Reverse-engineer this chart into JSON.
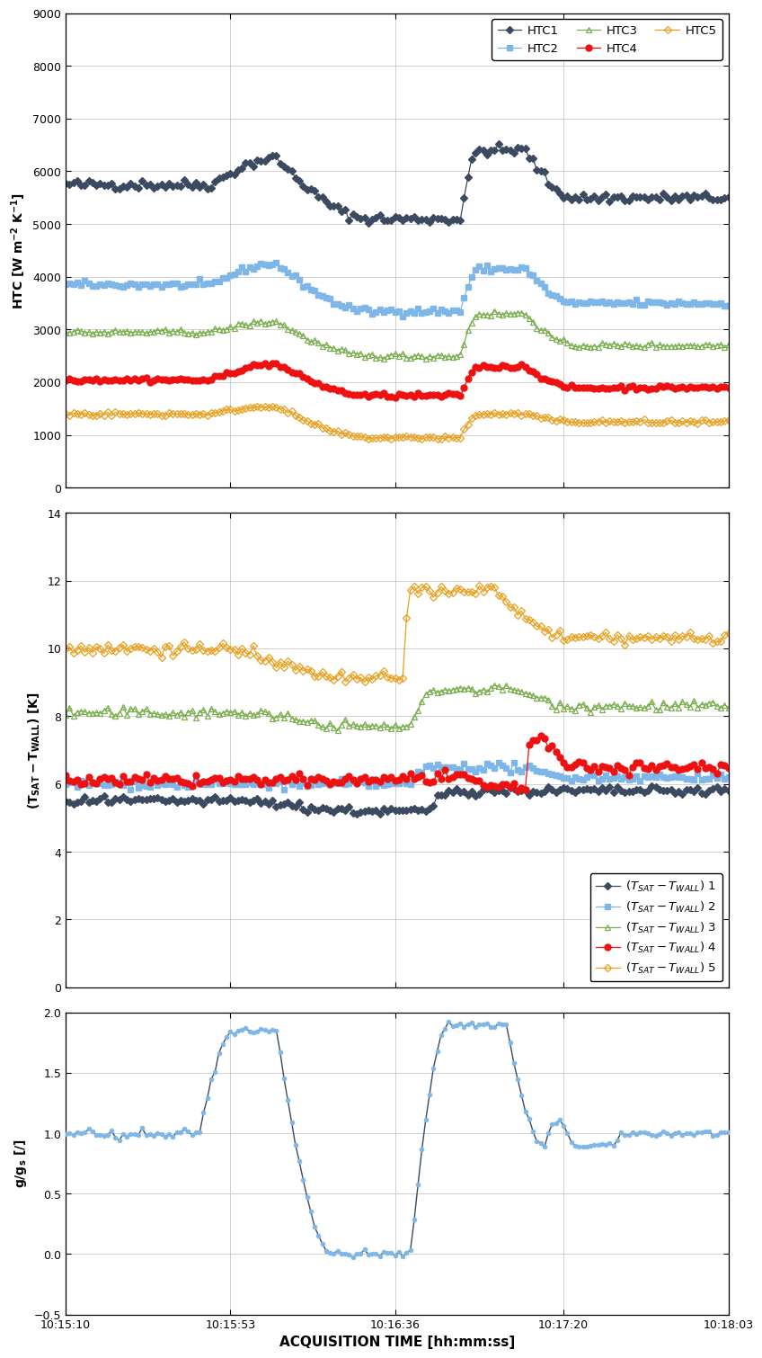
{
  "x_ticks_labels": [
    "10:15:10",
    "10:15:53",
    "10:16:36",
    "10:17:20",
    "10:18:03"
  ],
  "x_ticks_pos": [
    0,
    43,
    86,
    130,
    173
  ],
  "xlabel": "ACQUISITION TIME [hh:mm:ss]",
  "htc_ylim": [
    0,
    9000
  ],
  "htc_yticks": [
    0,
    1000,
    2000,
    3000,
    4000,
    5000,
    6000,
    7000,
    8000,
    9000
  ],
  "dt_ylim": [
    0,
    14
  ],
  "dt_yticks": [
    0,
    2,
    4,
    6,
    8,
    10,
    12,
    14
  ],
  "g_ylim": [
    -0.5,
    2.0
  ],
  "g_yticks": [
    -0.5,
    0.0,
    0.5,
    1.0,
    1.5,
    2.0
  ],
  "colors": {
    "htc1": "#3B4A60",
    "htc2": "#7EB6E8",
    "htc3": "#7BAF50",
    "htc4": "#EE1111",
    "htc5": "#E8A020",
    "g": "#3B4A60"
  },
  "background": "#FFFFFF",
  "grid_color": "#C8C8C8"
}
